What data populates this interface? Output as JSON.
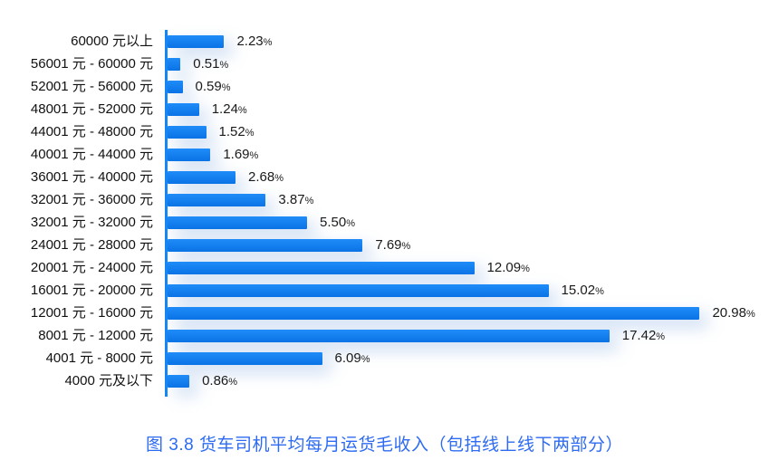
{
  "chart_data": {
    "type": "bar",
    "orientation": "horizontal",
    "title": "图 3.8  货车司机平均每月运货毛收入（包括线上线下两部分）",
    "categories": [
      "60000 元以上",
      "56001 元 - 60000 元",
      "52001 元 - 56000 元",
      "48001 元 - 52000 元",
      "44001 元 - 48000 元",
      "40001 元 - 44000 元",
      "36001 元 - 40000 元",
      "32001 元 - 36000 元",
      "32001 元 - 32000 元",
      "24001 元 - 28000 元",
      "20001 元 - 24000 元",
      "16001 元 - 20000 元",
      "12001 元 - 16000 元",
      "8001 元 - 12000 元",
      "4001 元 - 8000 元",
      "4000 元及以下"
    ],
    "values": [
      2.23,
      0.51,
      0.59,
      1.24,
      1.52,
      1.69,
      2.68,
      3.87,
      5.5,
      7.69,
      12.09,
      15.02,
      20.98,
      17.42,
      6.09,
      0.86
    ],
    "value_labels": [
      "2.23",
      "0.51",
      "0.59",
      "1.24",
      "1.52",
      "1.69",
      "2.68",
      "3.87",
      "5.50",
      "7.69",
      "12.09",
      "15.02",
      "20.98",
      "17.42",
      "6.09",
      "0.86"
    ],
    "unit_suffix": "%",
    "xlim": [
      0,
      21
    ],
    "grid": false,
    "legend": false,
    "colors": {
      "bar_gradient_top": "#1F8CF8",
      "bar_gradient_bottom": "#0A73E6",
      "axis": "#1486F4",
      "value_text": "#1A1A1A",
      "category_text": "#111111",
      "caption": "#2E6BF2",
      "glow": "rgba(130,170,225,0.45)"
    }
  }
}
